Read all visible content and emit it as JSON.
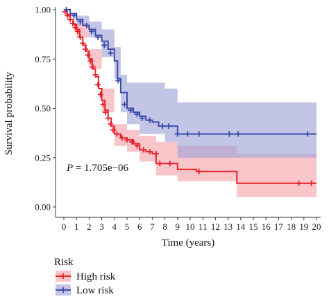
{
  "chart_data": {
    "type": "line",
    "subtype": "kaplan-meier survival curve",
    "xlabel": "Time (years)",
    "ylabel": "Survival probability",
    "xlim": [
      0,
      20
    ],
    "ylim": [
      0,
      1
    ],
    "x_ticks": [
      "0",
      "1",
      "2",
      "3",
      "4",
      "5",
      "6",
      "7",
      "8",
      "9",
      "10",
      "11",
      "12",
      "13",
      "14",
      "15",
      "16",
      "17",
      "18",
      "19",
      "20"
    ],
    "y_ticks": [
      "0.00",
      "0.25",
      "0.50",
      "0.75",
      "1.00"
    ],
    "grid": false,
    "annotation": "P = 1.705e−06",
    "legend_title": "Risk",
    "legend_position": "bottom-left",
    "series": [
      {
        "name": "High risk",
        "color": "#e8202a",
        "fill": "#f4a3a6",
        "curve": [
          [
            0,
            1.0
          ],
          [
            0.25,
            0.975
          ],
          [
            0.5,
            0.95
          ],
          [
            0.75,
            0.925
          ],
          [
            1.0,
            0.9
          ],
          [
            1.25,
            0.86
          ],
          [
            1.5,
            0.82
          ],
          [
            1.75,
            0.79
          ],
          [
            2.0,
            0.75
          ],
          [
            2.25,
            0.7
          ],
          [
            2.5,
            0.66
          ],
          [
            2.75,
            0.6
          ],
          [
            3.0,
            0.54
          ],
          [
            3.25,
            0.49
          ],
          [
            3.5,
            0.45
          ],
          [
            3.75,
            0.41
          ],
          [
            4.0,
            0.37
          ],
          [
            4.5,
            0.35
          ],
          [
            5.0,
            0.34
          ],
          [
            5.5,
            0.32
          ],
          [
            6.0,
            0.29
          ],
          [
            6.5,
            0.28
          ],
          [
            7.0,
            0.27
          ],
          [
            7.3,
            0.22
          ],
          [
            8.0,
            0.22
          ],
          [
            9.0,
            0.19
          ],
          [
            10.5,
            0.18
          ],
          [
            13.7,
            0.12
          ],
          [
            20.0,
            0.12
          ]
        ],
        "ci_upper": [
          [
            0,
            1.0
          ],
          [
            1.0,
            0.93
          ],
          [
            2.0,
            0.8
          ],
          [
            3.0,
            0.6
          ],
          [
            4.0,
            0.42
          ],
          [
            5.0,
            0.39
          ],
          [
            6.0,
            0.36
          ],
          [
            7.3,
            0.33
          ],
          [
            9.0,
            0.31
          ],
          [
            13.7,
            0.27
          ],
          [
            20.0,
            0.27
          ]
        ],
        "ci_lower": [
          [
            0,
            1.0
          ],
          [
            1.0,
            0.86
          ],
          [
            2.0,
            0.7
          ],
          [
            3.0,
            0.48
          ],
          [
            4.0,
            0.31
          ],
          [
            5.0,
            0.28
          ],
          [
            6.0,
            0.23
          ],
          [
            7.3,
            0.16
          ],
          [
            9.0,
            0.13
          ],
          [
            13.7,
            0.05
          ],
          [
            20.0,
            0.05
          ]
        ],
        "censor_marks": [
          [
            0.1,
            0.99
          ],
          [
            0.3,
            0.97
          ],
          [
            0.5,
            0.95
          ],
          [
            0.7,
            0.93
          ],
          [
            0.9,
            0.91
          ],
          [
            1.1,
            0.89
          ],
          [
            1.3,
            0.86
          ],
          [
            1.5,
            0.83
          ],
          [
            1.7,
            0.8
          ],
          [
            1.9,
            0.77
          ],
          [
            2.1,
            0.74
          ],
          [
            2.3,
            0.71
          ],
          [
            2.5,
            0.67
          ],
          [
            2.7,
            0.62
          ],
          [
            2.9,
            0.57
          ],
          [
            3.1,
            0.52
          ],
          [
            3.3,
            0.48
          ],
          [
            3.5,
            0.45
          ],
          [
            3.7,
            0.42
          ],
          [
            3.9,
            0.39
          ],
          [
            4.2,
            0.37
          ],
          [
            4.6,
            0.35
          ],
          [
            5.0,
            0.34
          ],
          [
            5.4,
            0.33
          ],
          [
            5.8,
            0.31
          ],
          [
            6.3,
            0.29
          ],
          [
            6.8,
            0.28
          ],
          [
            7.3,
            0.27
          ],
          [
            7.6,
            0.22
          ],
          [
            8.4,
            0.22
          ],
          [
            10.7,
            0.18
          ],
          [
            18.6,
            0.12
          ],
          [
            19.6,
            0.12
          ]
        ]
      },
      {
        "name": "Low risk",
        "color": "#3b4aa8",
        "fill": "#9ea2d8",
        "curve": [
          [
            0,
            1.0
          ],
          [
            0.5,
            0.98
          ],
          [
            1.0,
            0.95
          ],
          [
            1.5,
            0.92
          ],
          [
            2.0,
            0.9
          ],
          [
            2.5,
            0.87
          ],
          [
            3.0,
            0.84
          ],
          [
            3.5,
            0.8
          ],
          [
            4.0,
            0.74
          ],
          [
            4.25,
            0.65
          ],
          [
            4.5,
            0.58
          ],
          [
            5.0,
            0.5
          ],
          [
            5.5,
            0.48
          ],
          [
            6.0,
            0.46
          ],
          [
            6.5,
            0.44
          ],
          [
            7.0,
            0.43
          ],
          [
            7.5,
            0.41
          ],
          [
            8.5,
            0.41
          ],
          [
            9.0,
            0.37
          ],
          [
            20.0,
            0.37
          ]
        ],
        "ci_upper": [
          [
            0,
            1.0
          ],
          [
            1.0,
            0.97
          ],
          [
            2.0,
            0.94
          ],
          [
            3.0,
            0.9
          ],
          [
            4.0,
            0.81
          ],
          [
            4.5,
            0.67
          ],
          [
            5.0,
            0.63
          ],
          [
            6.0,
            0.63
          ],
          [
            8.0,
            0.6
          ],
          [
            9.0,
            0.53
          ],
          [
            20.0,
            0.53
          ]
        ],
        "ci_lower": [
          [
            0,
            1.0
          ],
          [
            1.0,
            0.92
          ],
          [
            2.0,
            0.86
          ],
          [
            3.0,
            0.76
          ],
          [
            4.0,
            0.65
          ],
          [
            4.5,
            0.48
          ],
          [
            5.0,
            0.42
          ],
          [
            6.0,
            0.37
          ],
          [
            8.0,
            0.33
          ],
          [
            9.0,
            0.25
          ],
          [
            20.0,
            0.25
          ]
        ],
        "censor_marks": [
          [
            0.2,
            1.0
          ],
          [
            0.8,
            0.97
          ],
          [
            1.3,
            0.94
          ],
          [
            1.8,
            0.92
          ],
          [
            2.2,
            0.89
          ],
          [
            2.7,
            0.86
          ],
          [
            3.2,
            0.82
          ],
          [
            3.7,
            0.78
          ],
          [
            4.3,
            0.64
          ],
          [
            4.8,
            0.52
          ],
          [
            5.3,
            0.49
          ],
          [
            5.8,
            0.47
          ],
          [
            6.2,
            0.45
          ],
          [
            6.8,
            0.44
          ],
          [
            7.8,
            0.41
          ],
          [
            8.3,
            0.41
          ],
          [
            9.0,
            0.37
          ],
          [
            9.8,
            0.37
          ],
          [
            10.7,
            0.37
          ],
          [
            13.1,
            0.37
          ],
          [
            13.8,
            0.37
          ],
          [
            19.3,
            0.37
          ]
        ]
      }
    ]
  }
}
